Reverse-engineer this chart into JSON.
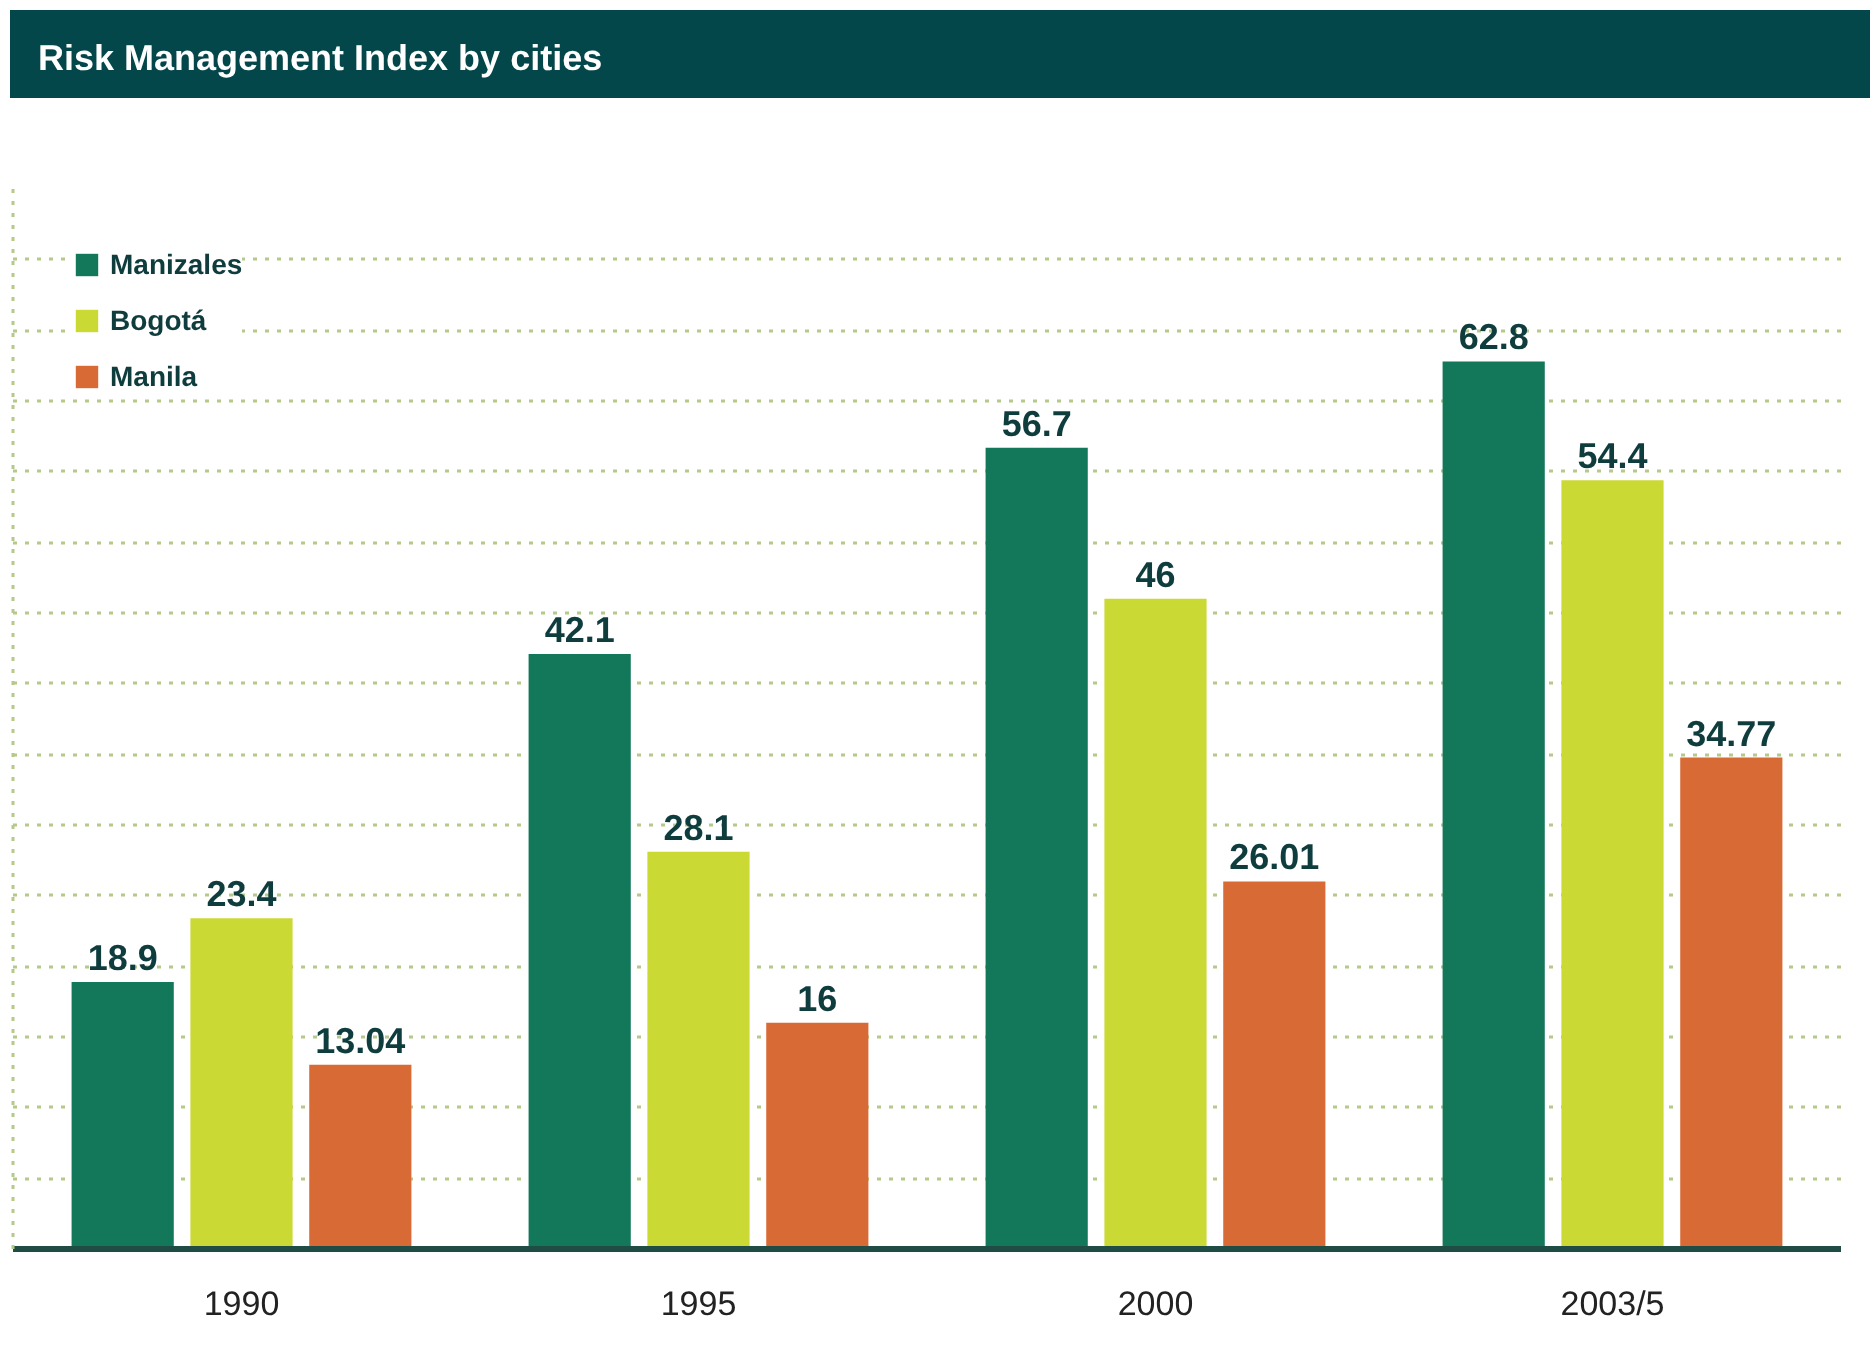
{
  "chart_data": {
    "type": "bar",
    "title": "Risk Management Index by cities",
    "categories": [
      "1990",
      "1995",
      "2000",
      "2003/5"
    ],
    "series": [
      {
        "name": "Manizales",
        "color": "#13775a",
        "values": [
          18.9,
          42.1,
          56.7,
          62.8
        ]
      },
      {
        "name": "Bogotá",
        "color": "#cbd934",
        "values": [
          23.4,
          28.1,
          46,
          54.4
        ]
      },
      {
        "name": "Manila",
        "color": "#d86b35",
        "values": [
          13.04,
          16,
          26.01,
          34.77
        ]
      }
    ],
    "ylim": [
      0,
      75
    ],
    "yticks": [
      {
        "value": 5,
        "label": null
      },
      {
        "value": 10,
        "label": null
      },
      {
        "value": 15,
        "label": null
      },
      {
        "value": 20,
        "label": null
      },
      {
        "value": 25,
        "label": null
      },
      {
        "value": 30,
        "label": null
      },
      {
        "value": 35,
        "label": null
      },
      {
        "value": 40,
        "label": null
      },
      {
        "value": 45,
        "label": null
      },
      {
        "value": 50,
        "label": null
      },
      {
        "value": 55,
        "label": null
      },
      {
        "value": 60,
        "label": null
      },
      {
        "value": 65,
        "label": null
      },
      {
        "value": 70,
        "label": null
      }
    ],
    "tick_labels": "x",
    "grid": "y",
    "legend": "top left",
    "data_labels": true
  }
}
